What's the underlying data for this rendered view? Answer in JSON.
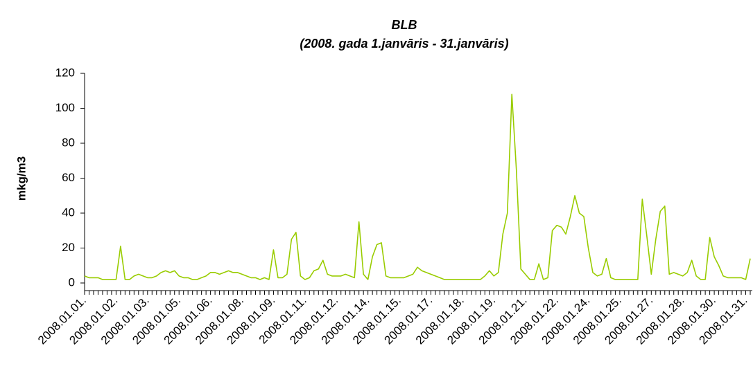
{
  "chart_data": {
    "type": "line",
    "title": "BLB",
    "subtitle": "(2008. gada 1.janvāris - 31.janvāris)",
    "y_label": "mkg/m3",
    "color": "#99cc00",
    "ylim": [
      0,
      120
    ],
    "yticks": [
      0,
      20,
      40,
      60,
      80,
      100,
      120
    ],
    "categories": [
      "2008.01.01.",
      null,
      null,
      null,
      null,
      null,
      null,
      "2008.01.02.",
      null,
      null,
      null,
      null,
      null,
      null,
      "2008.01.03.",
      null,
      null,
      null,
      null,
      null,
      null,
      "2008.01.05.",
      null,
      null,
      null,
      null,
      null,
      null,
      "2008.01.06.",
      null,
      null,
      null,
      null,
      null,
      null,
      "2008.01.08.",
      null,
      null,
      null,
      null,
      null,
      null,
      "2008.01.09.",
      null,
      null,
      null,
      null,
      null,
      null,
      "2008.01.11.",
      null,
      null,
      null,
      null,
      null,
      null,
      "2008.01.12.",
      null,
      null,
      null,
      null,
      null,
      null,
      "2008.01.14.",
      null,
      null,
      null,
      null,
      null,
      null,
      "2008.01.15.",
      null,
      null,
      null,
      null,
      null,
      null,
      "2008.01.17.",
      null,
      null,
      null,
      null,
      null,
      null,
      "2008.01.18.",
      null,
      null,
      null,
      null,
      null,
      null,
      "2008.01.19.",
      null,
      null,
      null,
      null,
      null,
      null,
      "2008.01.21.",
      null,
      null,
      null,
      null,
      null,
      null,
      "2008.01.22.",
      null,
      null,
      null,
      null,
      null,
      null,
      "2008.01.24.",
      null,
      null,
      null,
      null,
      null,
      null,
      "2008.01.25.",
      null,
      null,
      null,
      null,
      null,
      null,
      "2008.01.27.",
      null,
      null,
      null,
      null,
      null,
      null,
      "2008.01.28.",
      null,
      null,
      null,
      null,
      null,
      null,
      "2008.01.30.",
      null,
      null,
      null,
      null,
      null,
      null,
      "2008.01.31.",
      null
    ],
    "values": [
      4,
      3,
      3,
      3,
      2,
      2,
      2,
      2,
      21,
      2,
      2,
      4,
      5,
      4,
      3,
      3,
      4,
      6,
      7,
      6,
      7,
      4,
      3,
      3,
      2,
      2,
      3,
      4,
      6,
      6,
      5,
      6,
      7,
      6,
      6,
      5,
      4,
      3,
      3,
      2,
      3,
      2,
      19,
      3,
      3,
      5,
      25,
      29,
      4,
      2,
      3,
      7,
      8,
      13,
      5,
      4,
      4,
      4,
      5,
      4,
      3,
      35,
      5,
      2,
      15,
      22,
      23,
      4,
      3,
      3,
      3,
      3,
      4,
      5,
      9,
      7,
      6,
      5,
      4,
      3,
      2,
      2,
      2,
      2,
      2,
      2,
      2,
      2,
      2,
      4,
      7,
      4,
      6,
      28,
      40,
      108,
      65,
      8,
      5,
      2,
      2,
      11,
      2,
      3,
      30,
      33,
      32,
      28,
      38,
      50,
      40,
      38,
      20,
      6,
      4,
      5,
      14,
      3,
      2,
      2,
      2,
      2,
      2,
      2,
      48,
      27,
      5,
      25,
      41,
      44,
      5,
      6,
      5,
      4,
      6,
      13,
      4,
      2,
      2,
      26,
      15,
      10,
      4,
      3,
      3,
      3,
      3,
      2,
      14
    ]
  }
}
